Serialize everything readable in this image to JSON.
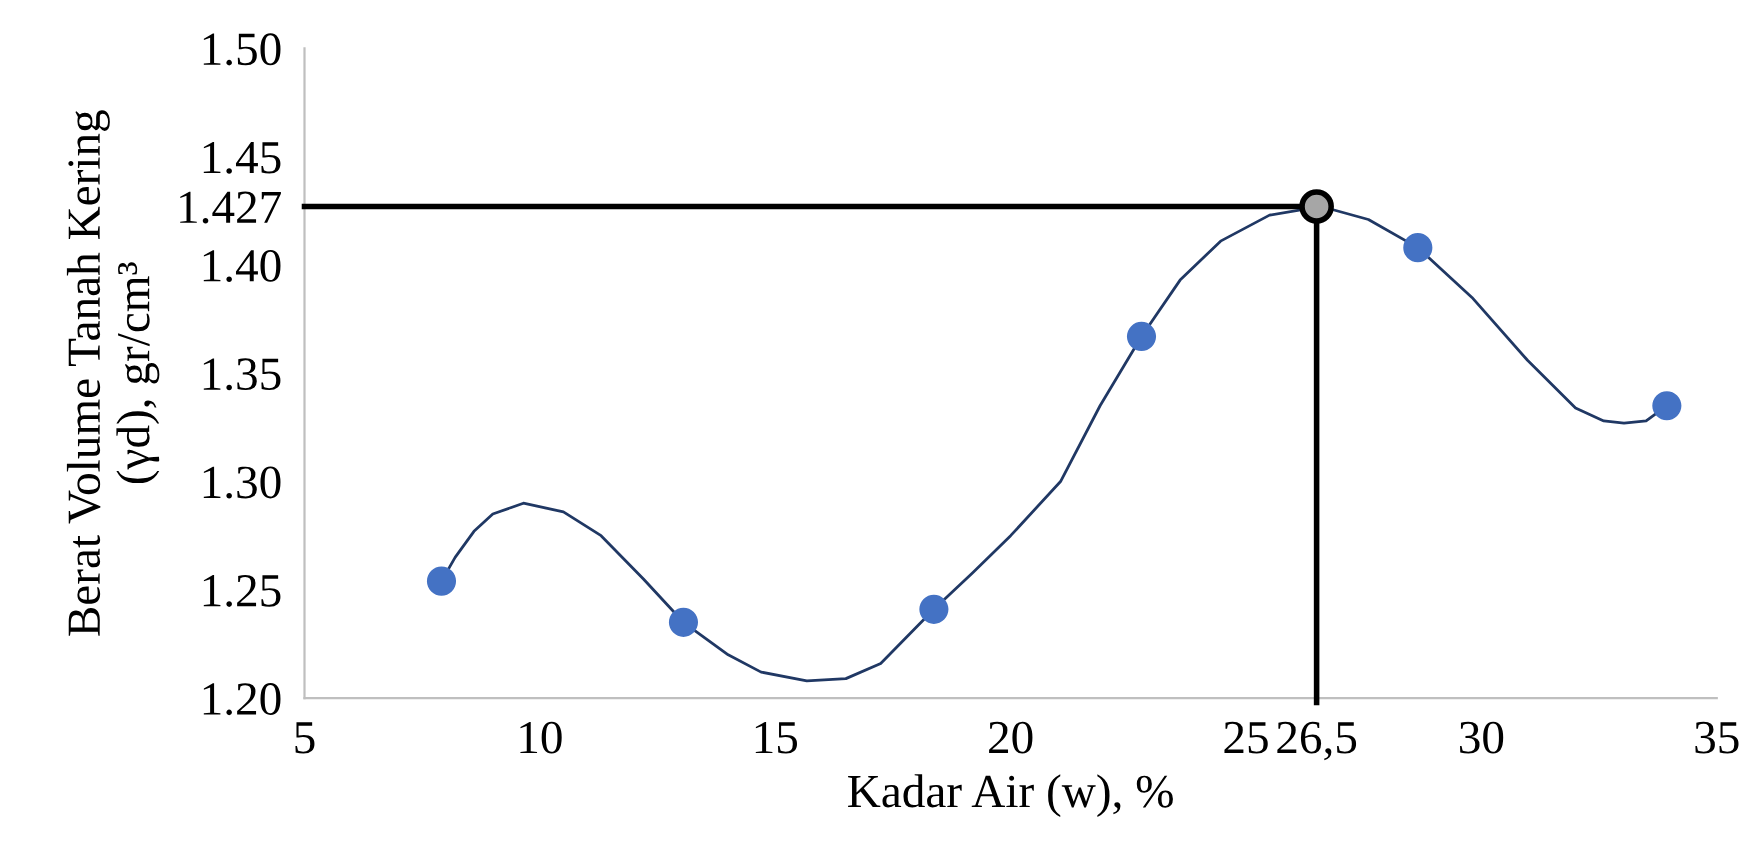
{
  "chart_data": {
    "type": "scatter",
    "xlabel": "Kadar Air (w), %",
    "ylabel": "Berat Volume Tanah Kering\n(γd), gr/cm³",
    "xlim": [
      5,
      35
    ],
    "xticks": [
      5,
      10,
      15,
      20,
      25,
      {
        "value": 26.5,
        "label": "26,5"
      },
      30,
      35
    ],
    "ylim": [
      1.2,
      1.5
    ],
    "yticks": [
      {
        "value": 1.2,
        "label": "1.20"
      },
      1.25,
      {
        "value": 1.3,
        "label": "1.30"
      },
      1.35,
      {
        "value": 1.4,
        "label": "1.40"
      },
      1.427,
      1.45,
      {
        "value": 1.5,
        "label": "1.50"
      }
    ],
    "grid": false,
    "legend": false,
    "marker": "circle",
    "series": [
      {
        "type": "line",
        "color": "#203864",
        "marker": "none",
        "x": [
          7.91,
          8.2,
          8.6,
          9.0,
          9.65,
          10.5,
          11.3,
          12.2,
          13.05,
          14.0,
          14.7,
          15.67,
          16.5,
          17.24,
          18.37,
          19.2,
          20.0,
          21.06,
          21.9,
          22.78,
          23.6,
          24.46,
          25.5,
          26.6,
          27.6,
          28.65,
          29.8,
          30.98,
          32.0,
          32.6,
          33.03,
          33.5,
          33.94
        ],
        "values": [
          1.254,
          1.265,
          1.277,
          1.285,
          1.29,
          1.286,
          1.275,
          1.255,
          1.235,
          1.22,
          1.212,
          1.208,
          1.209,
          1.216,
          1.241,
          1.258,
          1.275,
          1.3,
          1.335,
          1.367,
          1.393,
          1.411,
          1.423,
          1.427,
          1.421,
          1.408,
          1.385,
          1.356,
          1.334,
          1.328,
          1.327,
          1.328,
          1.335
        ]
      },
      {
        "color": "#4472c4",
        "x": [
          7.91,
          13.05,
          18.37,
          22.78,
          28.65,
          33.94
        ],
        "values": [
          1.254,
          1.235,
          1.241,
          1.367,
          1.408,
          1.335
        ]
      },
      {
        "color": "#a6a6a6",
        "x": [
          26.5
        ],
        "values": [
          1.427
        ]
      }
    ],
    "ref_lines": [
      {
        "axis": "y",
        "value": 1.427,
        "color": "#000000"
      },
      {
        "axis": "x",
        "value": 26.5,
        "color": "#000000"
      }
    ]
  }
}
